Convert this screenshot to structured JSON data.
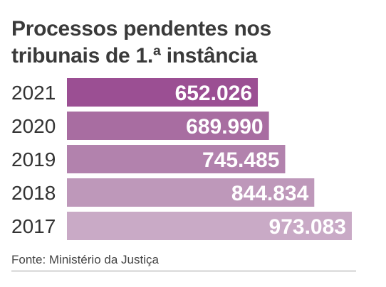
{
  "title_line1": "Processos pendentes nos",
  "title_line2": "tribunais de 1.ª instância",
  "source": "Fonte: Ministério da Justiça",
  "chart_data": {
    "type": "bar",
    "orientation": "horizontal",
    "title": "Processos pendentes nos tribunais de 1.ª instância",
    "categories": [
      "2021",
      "2020",
      "2019",
      "2018",
      "2017"
    ],
    "values": [
      652026,
      689990,
      745485,
      844834,
      973083
    ],
    "value_labels": [
      "652.026",
      "689.990",
      "745.485",
      "844.834",
      "973.083"
    ],
    "colors": [
      "#9b4f93",
      "#a86da1",
      "#b282ad",
      "#be98ba",
      "#c9aac6"
    ],
    "xlim": [
      0,
      973083
    ],
    "grid": false,
    "legend": "none"
  }
}
